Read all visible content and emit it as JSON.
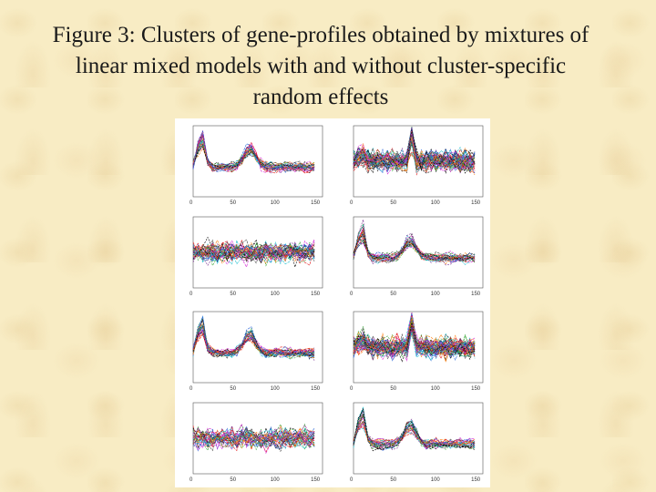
{
  "slide": {
    "title_lines": [
      "Figure 3: Clusters of gene-profiles obtained by mixtures of",
      "linear mixed models with and without  cluster-specific",
      "random effects"
    ]
  },
  "chart_data": {
    "type": "line",
    "x_ticks": [
      "0",
      "50",
      "100",
      "150"
    ],
    "xlim": [
      0,
      160
    ],
    "ylim": [
      -3,
      3
    ],
    "panels": [
      {
        "shape": "double_peak",
        "density": 30
      },
      {
        "shape": "noisy_spike",
        "density": 55
      },
      {
        "shape": "flat_noisy",
        "density": 40
      },
      {
        "shape": "double_peak",
        "density": 28
      },
      {
        "shape": "double_peak",
        "density": 30
      },
      {
        "shape": "noisy_spike",
        "density": 55
      },
      {
        "shape": "flat_noisy",
        "density": 35
      },
      {
        "shape": "double_peak",
        "density": 28
      }
    ],
    "line_colors": [
      "#000000",
      "#e41a1c",
      "#1f5fd6",
      "#2ca02c",
      "#17becf",
      "#d62ad6",
      "#7b3294",
      "#ff7f0e",
      "#444444"
    ]
  }
}
